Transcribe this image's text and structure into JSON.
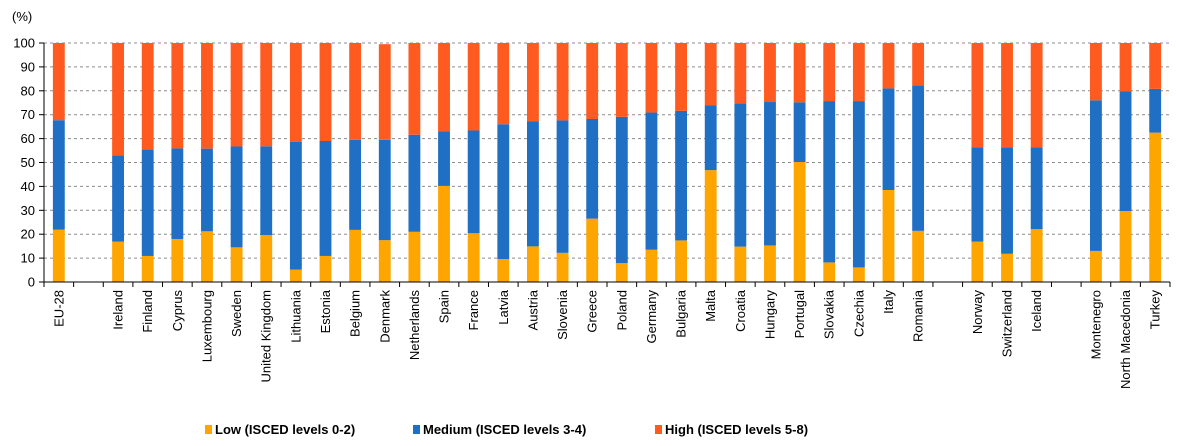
{
  "chart_data": {
    "type": "bar",
    "stacked": true,
    "title": "",
    "xlabel": "",
    "ylabel": "(%)",
    "ylim": [
      0,
      100
    ],
    "yticks": [
      0,
      10,
      20,
      30,
      40,
      50,
      60,
      70,
      80,
      90,
      100
    ],
    "grid": "horizontal dashed",
    "legend_position": "bottom",
    "categories": [
      "EU-28",
      "",
      "Ireland",
      "Finland",
      "Cyprus",
      "Luxembourg",
      "Sweden",
      "United Kingdom",
      "Lithuania",
      "Estonia",
      "Belgium",
      "Denmark",
      "Netherlands",
      "Spain",
      "France",
      "Latvia",
      "Austria",
      "Slovenia",
      "Greece",
      "Poland",
      "Germany",
      "Bulgaria",
      "Malta",
      "Croatia",
      "Hungary",
      "Portugal",
      "Slovakia",
      "Czechia",
      "Italy",
      "Romania",
      "",
      "Norway",
      "Switzerland",
      "Iceland",
      "",
      "Montenegro",
      "North Macedonia",
      "Turkey"
    ],
    "series": [
      {
        "name": "Low (ISCED levels 0-2)",
        "color": "#FFA500",
        "values": [
          21.9,
          null,
          16.9,
          10.9,
          18.0,
          21.2,
          14.5,
          19.6,
          5.2,
          10.9,
          21.8,
          17.5,
          21.0,
          40.2,
          20.4,
          9.6,
          14.9,
          12.2,
          26.5,
          7.9,
          13.5,
          17.4,
          46.8,
          14.8,
          15.3,
          50.2,
          8.2,
          6.1,
          38.5,
          21.4,
          null,
          16.9,
          11.8,
          22.1,
          null,
          13.0,
          29.7,
          62.5
        ]
      },
      {
        "name": "Medium (ISCED levels 3-4)",
        "color": "#1F6FC4",
        "values": [
          45.8,
          null,
          36.0,
          44.5,
          37.9,
          34.6,
          42.2,
          37.2,
          53.4,
          48.1,
          37.7,
          42.0,
          40.6,
          22.8,
          43.0,
          56.4,
          52.4,
          55.4,
          41.7,
          61.2,
          57.4,
          54.2,
          27.2,
          60.0,
          60.0,
          25.0,
          67.5,
          69.6,
          42.5,
          60.9,
          null,
          39.5,
          44.6,
          34.2,
          null,
          63.0,
          50.0,
          18.3
        ]
      },
      {
        "name": "High (ISCED levels 5-8)",
        "color": "#FF5A1F",
        "values": [
          32.3,
          null,
          47.1,
          44.6,
          44.1,
          44.2,
          43.3,
          43.2,
          41.4,
          41.0,
          40.5,
          40.0,
          38.4,
          37.0,
          36.6,
          34.0,
          32.7,
          32.4,
          31.8,
          30.9,
          29.1,
          28.4,
          26.0,
          25.2,
          24.7,
          24.8,
          24.3,
          24.3,
          19.0,
          17.7,
          null,
          43.6,
          43.6,
          43.7,
          null,
          24.0,
          20.3,
          19.2
        ]
      }
    ]
  }
}
